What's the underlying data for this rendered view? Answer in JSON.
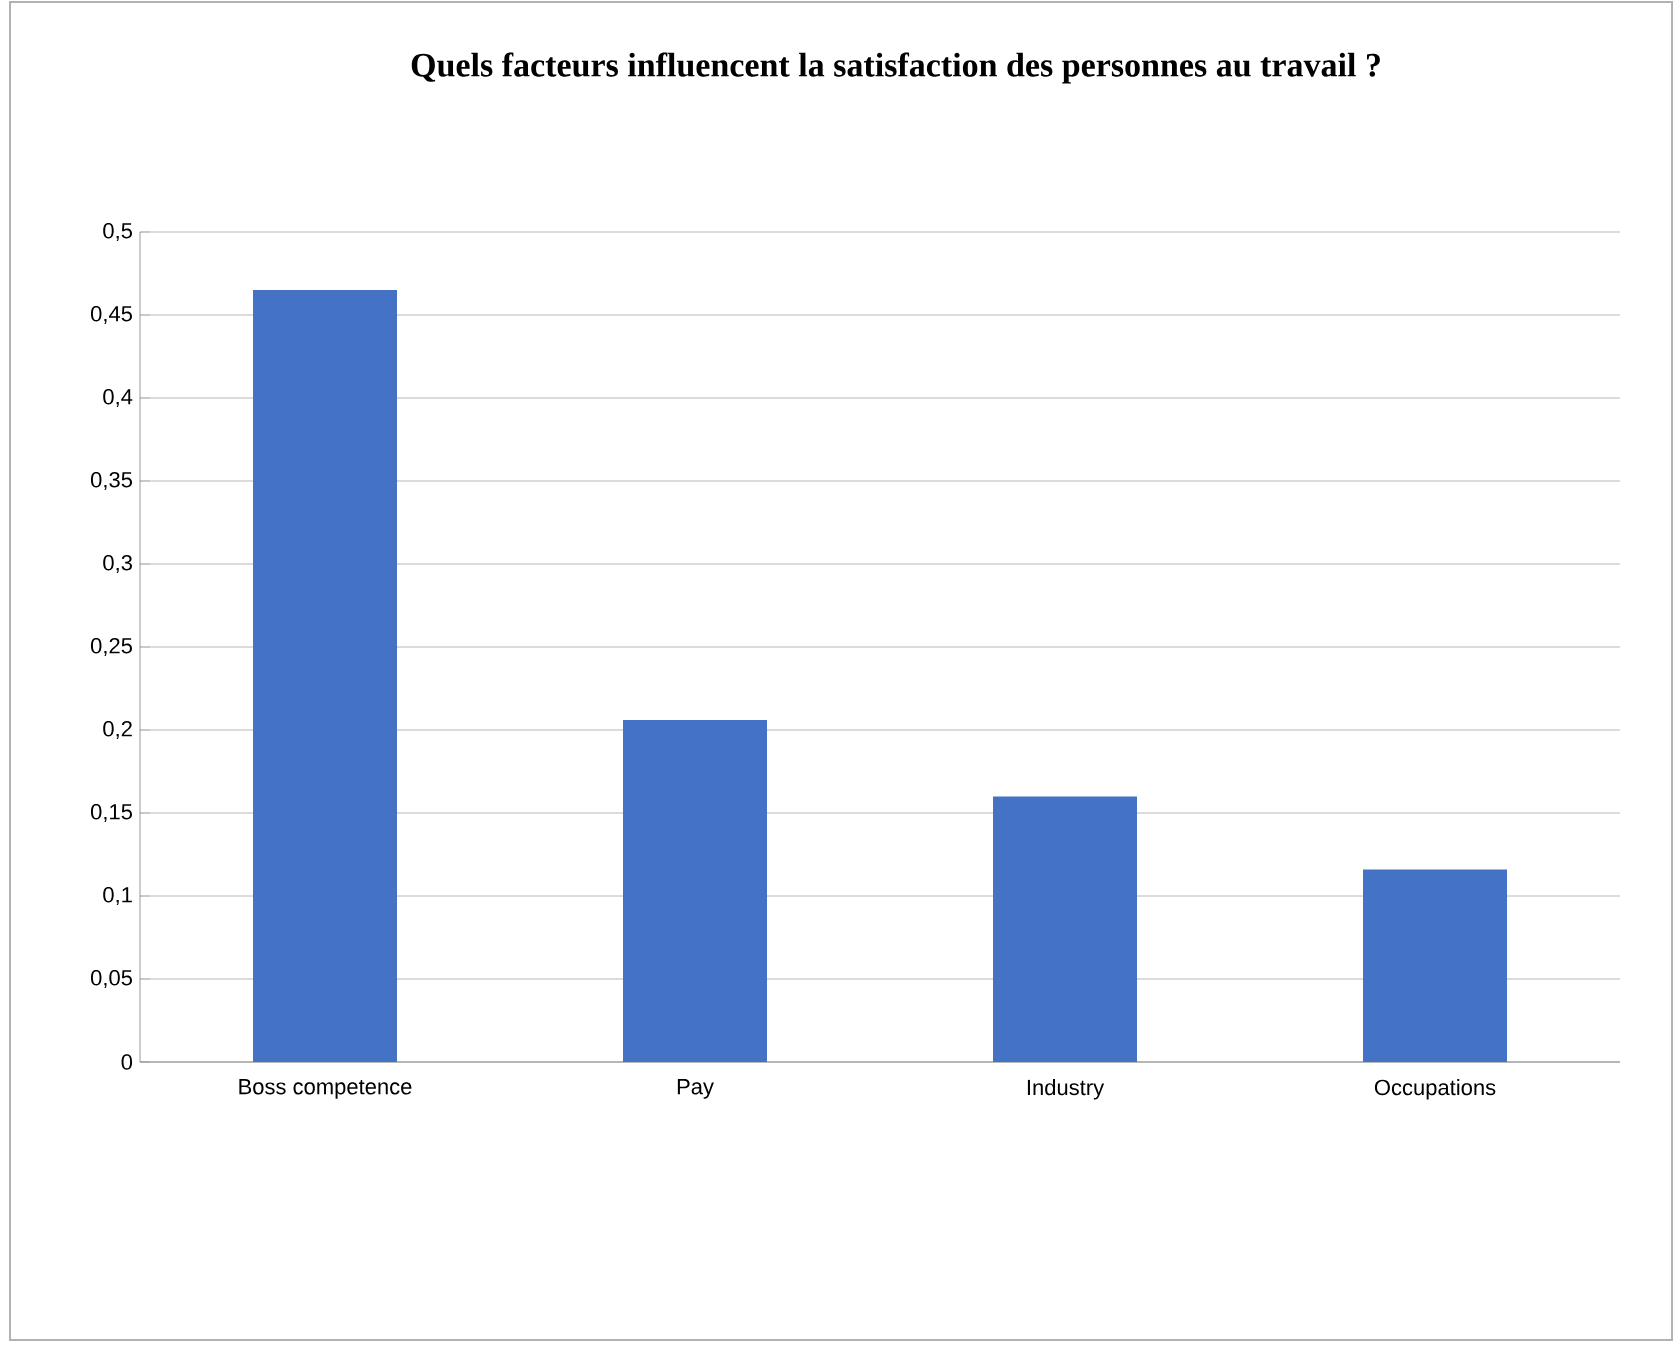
{
  "chart_data": {
    "type": "bar",
    "title": "Quels facteurs influencent la satisfaction des personnes au travail ?",
    "categories": [
      "Boss competence",
      "Pay",
      "Industry",
      "Occupations"
    ],
    "values": [
      0.465,
      0.206,
      0.16,
      0.116
    ],
    "color": "#4472c4",
    "ylim": [
      0,
      0.5
    ],
    "yticks": [
      {
        "value": 0,
        "label": "0"
      },
      {
        "value": 0.05,
        "label": "0,05"
      },
      {
        "value": 0.1,
        "label": "0,1"
      },
      {
        "value": 0.15,
        "label": "0,15"
      },
      {
        "value": 0.2,
        "label": "0,2"
      },
      {
        "value": 0.25,
        "label": "0,25"
      },
      {
        "value": 0.3,
        "label": "0,3"
      },
      {
        "value": 0.35,
        "label": "0,35"
      },
      {
        "value": 0.4,
        "label": "0,4"
      },
      {
        "value": 0.45,
        "label": "0,45"
      },
      {
        "value": 0.5,
        "label": "0,5"
      }
    ],
    "grid": true
  }
}
